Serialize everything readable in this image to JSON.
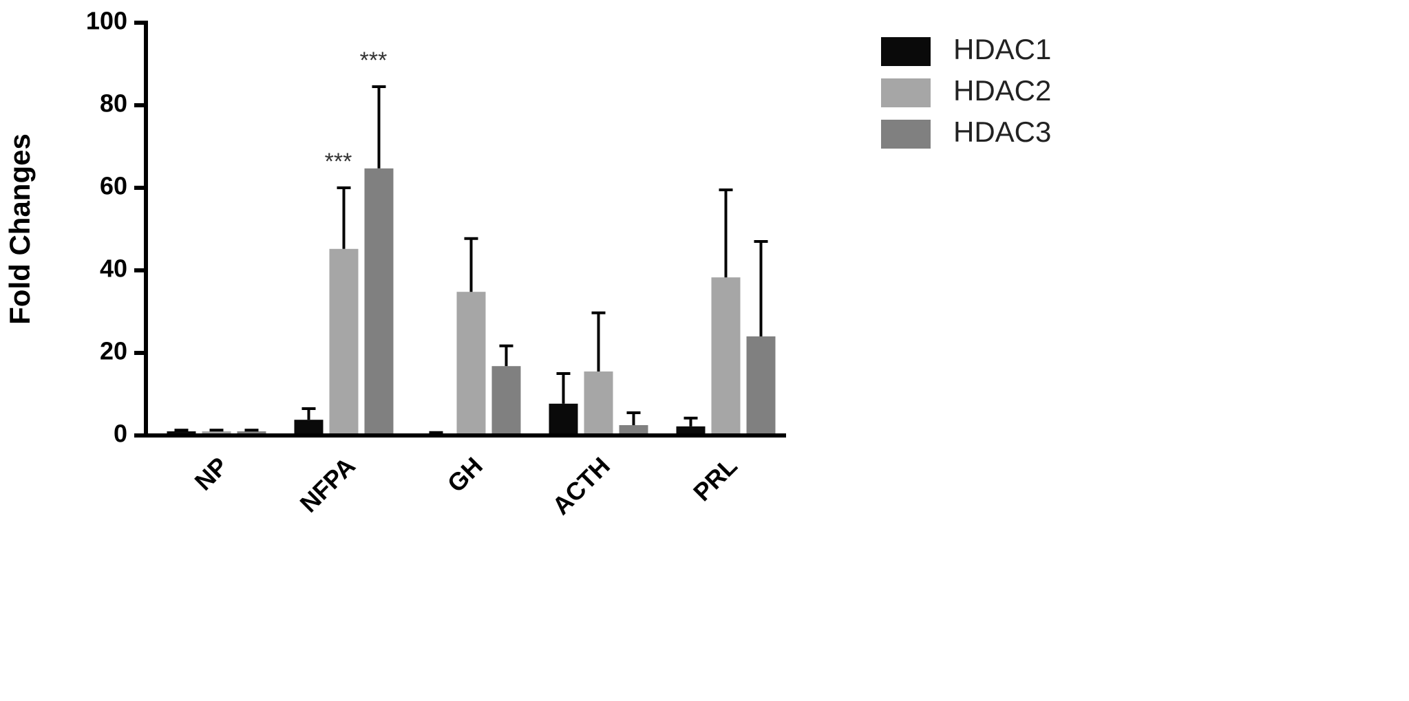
{
  "chart_data": {
    "type": "bar",
    "y_label": "Fold Changes",
    "categories": [
      "NP",
      "NFPA",
      "GH",
      "ACTH",
      "PRL"
    ],
    "series": [
      {
        "name": "HDAC1",
        "color": "#0a0a0a",
        "values": [
          1,
          3.8,
          0.5,
          7.7,
          2.2
        ],
        "errors": [
          0.3,
          2.7,
          0.2,
          7.3,
          2
        ]
      },
      {
        "name": "HDAC2",
        "color": "#a6a6a6",
        "values": [
          1,
          45.2,
          34.8,
          15.5,
          38.3
        ],
        "errors": [
          0.3,
          14.8,
          12.9,
          14.2,
          21.2
        ],
        "annotations": [
          null,
          "***",
          null,
          null,
          null
        ]
      },
      {
        "name": "HDAC3",
        "color": "#808080",
        "values": [
          1,
          64.7,
          16.8,
          2.5,
          24
        ],
        "errors": [
          0.3,
          19.8,
          4.9,
          3,
          23
        ],
        "annotations": [
          null,
          "***",
          null,
          null,
          null
        ]
      }
    ],
    "ylim": [
      0,
      100
    ],
    "yticks": [
      0,
      20,
      40,
      60,
      80,
      100
    ],
    "legend": "right"
  }
}
